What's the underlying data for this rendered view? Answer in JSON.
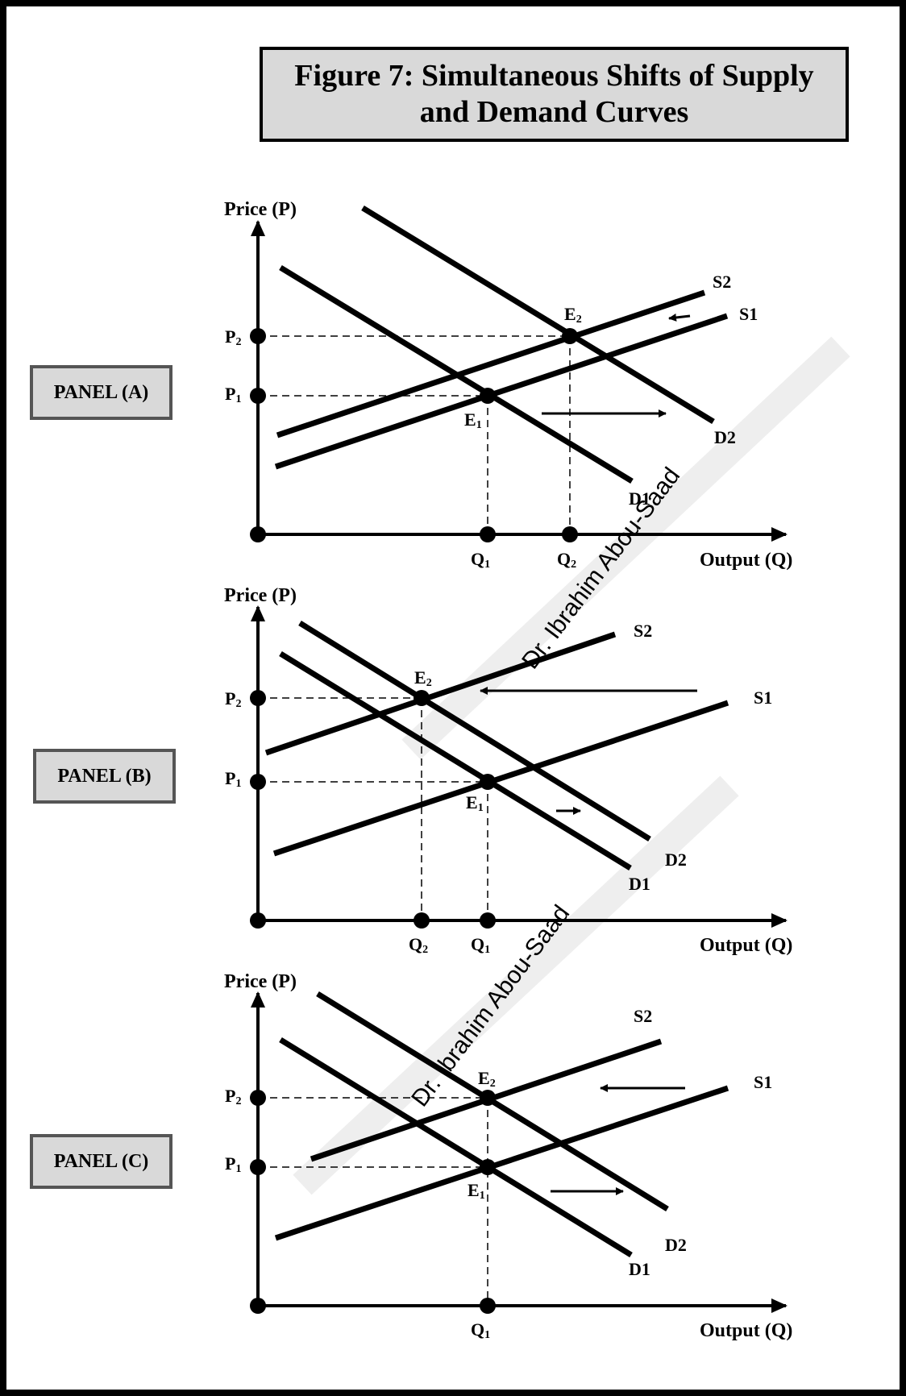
{
  "figure": {
    "title_line1": "Figure 7: Simultaneous Shifts of Supply",
    "title_line2": "and Demand Curves"
  },
  "panels": [
    {
      "label": "PANEL (A)",
      "y_axis_label": "Price (P)",
      "x_axis_label": "Output (Q)",
      "price_labels": [
        "P2",
        "P1"
      ],
      "quantity_labels": [
        "Q1",
        "Q2"
      ],
      "equilibrium_labels": [
        "E1",
        "E2"
      ],
      "curve_labels": [
        "S2",
        "S1",
        "D2",
        "D1"
      ]
    },
    {
      "label": "PANEL (B)",
      "y_axis_label": "Price (P)",
      "x_axis_label": "Output (Q)",
      "price_labels": [
        "P2",
        "P1"
      ],
      "quantity_labels": [
        "Q2",
        "Q1"
      ],
      "equilibrium_labels": [
        "E2",
        "E1"
      ],
      "curve_labels": [
        "S2",
        "S1",
        "D2",
        "D1"
      ]
    },
    {
      "label": "PANEL (C)",
      "y_axis_label": "Price (P)",
      "x_axis_label": "Output (Q)",
      "price_labels": [
        "P2",
        "P1"
      ],
      "quantity_labels": [
        "Q1"
      ],
      "equilibrium_labels": [
        "E2",
        "E1"
      ],
      "curve_labels": [
        "S2",
        "S1",
        "D2",
        "D1"
      ]
    }
  ],
  "watermark": {
    "text": "Dr. Ibrahim Abou-Saad",
    "color": "#e8141b"
  },
  "colors": {
    "line": "#000000",
    "box_fill": "#d9d9d9"
  }
}
